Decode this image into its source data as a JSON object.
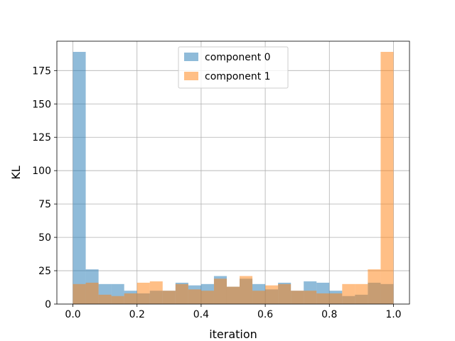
{
  "chart_data": {
    "type": "histogram",
    "xlabel": "iteration",
    "ylabel": "KL",
    "xlim": [
      -0.05,
      1.05
    ],
    "ylim": [
      0,
      197
    ],
    "x_ticks": [
      0.0,
      0.2,
      0.4,
      0.6,
      0.8,
      1.0
    ],
    "x_tick_labels": [
      "0.0",
      "0.2",
      "0.4",
      "0.6",
      "0.8",
      "1.0"
    ],
    "y_ticks": [
      0,
      25,
      50,
      75,
      100,
      125,
      150,
      175
    ],
    "y_tick_labels": [
      "0",
      "25",
      "50",
      "75",
      "100",
      "125",
      "150",
      "175"
    ],
    "grid": true,
    "legend_position": "upper center",
    "bin_edges": [
      0.0,
      0.04,
      0.08,
      0.12,
      0.16,
      0.2,
      0.24,
      0.28,
      0.32,
      0.36,
      0.4,
      0.44,
      0.48,
      0.52,
      0.56,
      0.6,
      0.64,
      0.68,
      0.72,
      0.76,
      0.8,
      0.84,
      0.88,
      0.92,
      0.96,
      1.0
    ],
    "series": [
      {
        "name": "component 0",
        "color": "#1f77b4",
        "alpha": 0.5,
        "values": [
          189,
          26,
          15,
          15,
          10,
          8,
          10,
          10,
          16,
          14,
          15,
          21,
          13,
          19,
          15,
          11,
          16,
          10,
          17,
          16,
          10,
          6,
          7,
          16,
          15
        ]
      },
      {
        "name": "component 1",
        "color": "#ff7f0e",
        "alpha": 0.5,
        "values": [
          15,
          16,
          7,
          6,
          8,
          16,
          17,
          10,
          15,
          11,
          10,
          19,
          13,
          21,
          10,
          14,
          15,
          10,
          10,
          8,
          8,
          15,
          15,
          26,
          189
        ]
      }
    ]
  }
}
